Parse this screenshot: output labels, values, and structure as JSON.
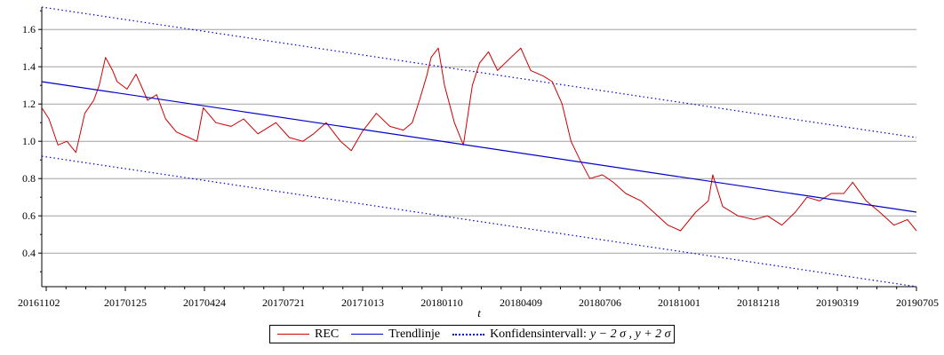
{
  "chart_data": {
    "type": "line",
    "xlabel": "t",
    "ylabel": "",
    "x_tick_labels": [
      "20161102",
      "20170125",
      "20170424",
      "20170721",
      "20171013",
      "20180110",
      "20180409",
      "20180706",
      "20181001",
      "20181218",
      "20190319",
      "20190705"
    ],
    "xlim": [
      "2016-11-02",
      "2019-07-05"
    ],
    "ylim": [
      0.22,
      1.72
    ],
    "yticks": [
      0.4,
      0.6,
      0.8,
      1.0,
      1.2,
      1.4,
      1.6
    ],
    "ytick_labels": [
      "0.4",
      "0.6",
      "0.8",
      "1.0",
      "1.2",
      "1.4",
      "1.6"
    ],
    "grid": "horizontal",
    "legend_position": "bottom",
    "colors": {
      "rec": "#cc0000",
      "trend": "#0000cc",
      "confidence": "#0000cc"
    },
    "legend": {
      "rec": "REC",
      "trend": "Trendlinje",
      "confidence_prefix": "Konfidensintervall: ",
      "confidence_formula": "y − 2 σ , y + 2 σ"
    },
    "series": [
      {
        "name": "REC",
        "x": [
          "2016-11-02",
          "2016-11-10",
          "2016-11-20",
          "2016-11-30",
          "2016-12-10",
          "2016-12-20",
          "2016-12-30",
          "2017-01-05",
          "2017-01-12",
          "2017-01-20",
          "2017-01-25",
          "2017-02-05",
          "2017-02-15",
          "2017-02-28",
          "2017-03-10",
          "2017-03-20",
          "2017-04-01",
          "2017-04-15",
          "2017-04-24",
          "2017-05-01",
          "2017-05-15",
          "2017-06-01",
          "2017-06-15",
          "2017-07-01",
          "2017-07-21",
          "2017-08-05",
          "2017-08-20",
          "2017-09-01",
          "2017-09-15",
          "2017-10-01",
          "2017-10-13",
          "2017-10-25",
          "2017-11-10",
          "2017-11-25",
          "2017-12-10",
          "2017-12-20",
          "2017-12-28",
          "2018-01-05",
          "2018-01-10",
          "2018-01-18",
          "2018-01-25",
          "2018-02-05",
          "2018-02-15",
          "2018-02-25",
          "2018-03-05",
          "2018-03-15",
          "2018-03-25",
          "2018-04-09",
          "2018-04-20",
          "2018-05-01",
          "2018-05-15",
          "2018-05-25",
          "2018-06-05",
          "2018-06-15",
          "2018-06-25",
          "2018-07-06",
          "2018-07-20",
          "2018-08-01",
          "2018-08-15",
          "2018-09-01",
          "2018-09-15",
          "2018-10-01",
          "2018-10-15",
          "2018-11-01",
          "2018-11-15",
          "2018-11-20",
          "2018-12-01",
          "2018-12-18",
          "2019-01-05",
          "2019-01-20",
          "2019-02-05",
          "2019-02-20",
          "2019-03-05",
          "2019-03-19",
          "2019-04-01",
          "2019-04-15",
          "2019-04-25",
          "2019-05-10",
          "2019-05-25",
          "2019-06-10",
          "2019-06-25",
          "2019-07-05"
        ],
        "y": [
          1.18,
          1.12,
          0.98,
          1.0,
          0.94,
          1.15,
          1.22,
          1.3,
          1.45,
          1.38,
          1.32,
          1.28,
          1.36,
          1.22,
          1.25,
          1.12,
          1.05,
          1.02,
          1.0,
          1.18,
          1.1,
          1.08,
          1.12,
          1.04,
          1.1,
          1.02,
          1.0,
          1.04,
          1.1,
          1.0,
          0.95,
          1.05,
          1.15,
          1.08,
          1.06,
          1.1,
          1.22,
          1.35,
          1.45,
          1.5,
          1.3,
          1.1,
          0.98,
          1.3,
          1.42,
          1.48,
          1.38,
          1.45,
          1.5,
          1.38,
          1.35,
          1.32,
          1.2,
          1.0,
          0.9,
          0.8,
          0.82,
          0.78,
          0.72,
          0.68,
          0.62,
          0.55,
          0.52,
          0.62,
          0.68,
          0.82,
          0.65,
          0.6,
          0.58,
          0.6,
          0.55,
          0.62,
          0.7,
          0.68,
          0.72,
          0.72,
          0.78,
          0.68,
          0.62,
          0.55,
          0.58,
          0.52
        ]
      },
      {
        "name": "Trendlinje",
        "x": [
          "2016-11-02",
          "2019-07-05"
        ],
        "y": [
          1.32,
          0.62
        ]
      },
      {
        "name": "Konfidensintervall upper",
        "x": [
          "2016-11-02",
          "2019-07-05"
        ],
        "y": [
          1.72,
          1.02
        ]
      },
      {
        "name": "Konfidensintervall lower",
        "x": [
          "2016-11-02",
          "2019-07-05"
        ],
        "y": [
          0.92,
          0.22
        ]
      }
    ]
  }
}
